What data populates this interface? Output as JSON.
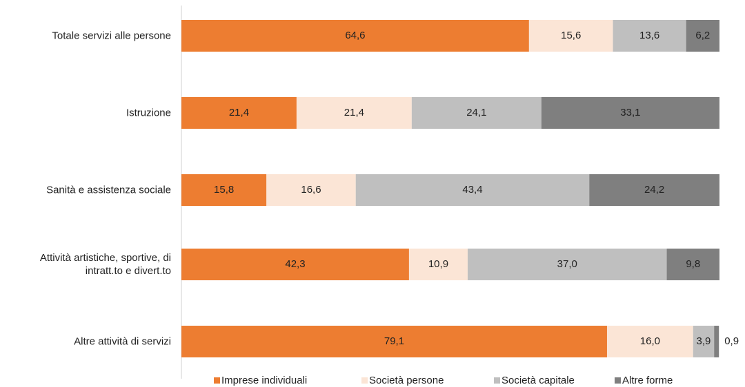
{
  "chart_data": {
    "type": "stacked-bar-horizontal",
    "categories": [
      "Totale servizi alle persone",
      "Istruzione",
      "Sanità e assistenza sociale",
      "Attività artistiche, sportive, di intratt.to e divert.to",
      "Altre attività di servizi"
    ],
    "xlim": [
      0,
      100
    ],
    "legend": "bottom",
    "series": [
      {
        "name": "Imprese individuali",
        "color": "#ed7d31",
        "values": [
          64.6,
          21.4,
          15.8,
          42.3,
          79.1
        ],
        "value_labels": [
          "64,6",
          "21,4",
          "15,8",
          "42,3",
          "79,1"
        ]
      },
      {
        "name": "Società persone",
        "color": "#fbe5d6",
        "values": [
          15.6,
          21.4,
          16.6,
          10.9,
          16.0
        ],
        "value_labels": [
          "15,6",
          "21,4",
          "16,6",
          "10,9",
          "16,0"
        ]
      },
      {
        "name": "Società capitale",
        "color": "#bfbfbf",
        "values": [
          13.6,
          24.1,
          43.4,
          37.0,
          3.9
        ],
        "value_labels": [
          "13,6",
          "24,1",
          "43,4",
          "37,0",
          "3,9"
        ]
      },
      {
        "name": "Altre forme",
        "color": "#7f7f7f",
        "values": [
          6.2,
          33.1,
          24.2,
          9.8,
          0.9
        ],
        "value_labels": [
          "6,2",
          "33,1",
          "24,2",
          "9,8",
          "0,9"
        ]
      }
    ]
  }
}
